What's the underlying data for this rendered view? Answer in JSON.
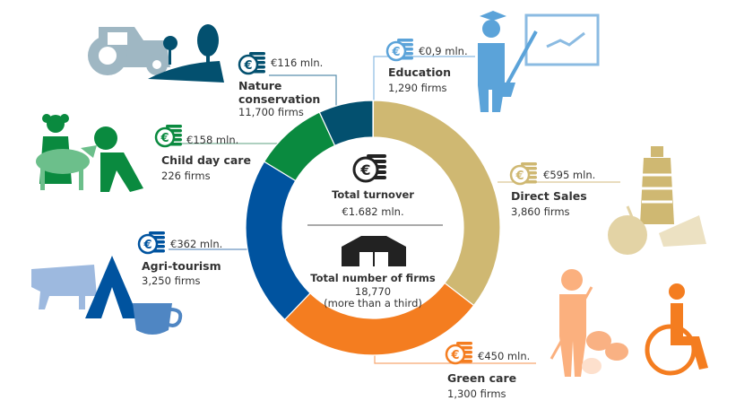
{
  "chart_data": {
    "type": "pie",
    "variant": "donut",
    "unit": "€ mln.",
    "categories": [
      "Education",
      "Direct Sales",
      "Green care",
      "Agri-tourism",
      "Child day care",
      "Nature conservation"
    ],
    "values": [
      0.9,
      595,
      450,
      362,
      158,
      116
    ],
    "value_labels": [
      "€0,9 mln.",
      "€595 mln.",
      "€450 mln.",
      "€362 mln.",
      "€158 mln.",
      "€116 mln."
    ],
    "firms": [
      "1,290 firms",
      "3,860 firms",
      "1,300 firms",
      "3,250 firms",
      "226 firms",
      "11,700 firms"
    ],
    "colors": [
      "#5ba3d9",
      "#cfb872",
      "#f47d20",
      "#00539f",
      "#0a8a3f",
      "#03506f"
    ],
    "start": "top",
    "direction": "clockwise"
  },
  "center": {
    "turnover_label": "Total turnover",
    "turnover_value": "€1.682 mln.",
    "firms_label": "Total number of firms",
    "firms_value": "18,770",
    "firms_note": "(more than a third)"
  },
  "icons": {
    "coin": "euro-coins-icon",
    "education": "teacher-icon",
    "direct_sales": "food-products-icon",
    "green_care": "care-farm-icon",
    "agri_tourism": "camping-icon",
    "child_day_care": "children-animals-icon",
    "nature_conservation": "tractor-landscape-icon",
    "firms": "barn-icon"
  }
}
